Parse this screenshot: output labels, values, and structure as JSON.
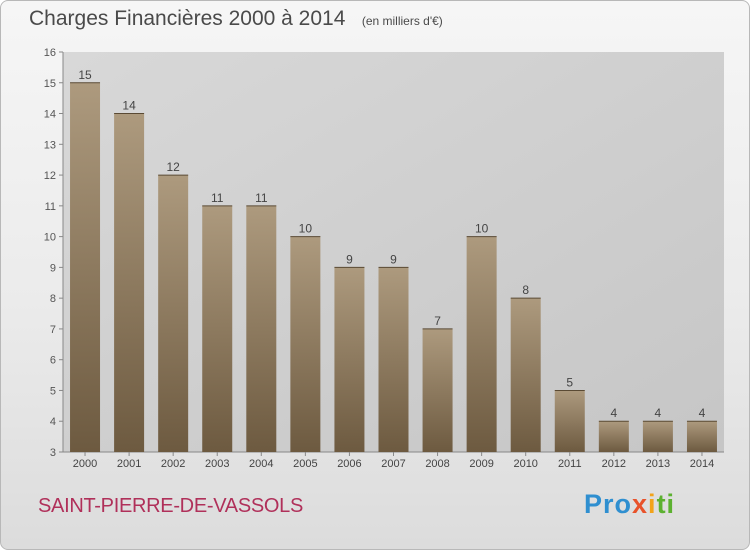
{
  "chart_data": {
    "type": "bar",
    "title": "Charges Financières 2000 à 2014",
    "unit": "(en milliers d'€)",
    "categories": [
      "2000",
      "2001",
      "2002",
      "2003",
      "2004",
      "2005",
      "2006",
      "2007",
      "2008",
      "2009",
      "2010",
      "2011",
      "2012",
      "2013",
      "2014"
    ],
    "values": [
      15,
      14,
      12,
      11,
      11,
      10,
      9,
      9,
      7,
      10,
      8,
      5,
      4,
      4,
      4
    ],
    "ylim": [
      3,
      16
    ],
    "yticks": [
      3,
      4,
      5,
      6,
      7,
      8,
      9,
      10,
      11,
      12,
      13,
      14,
      15,
      16
    ],
    "grid": false,
    "bar_color": "#8f7a5e"
  },
  "commune": "SAINT-PIERRE-DE-VASSOLS",
  "logo": {
    "p1": "Pro",
    "p2": "x",
    "p3": "i",
    "p4": "ti"
  }
}
